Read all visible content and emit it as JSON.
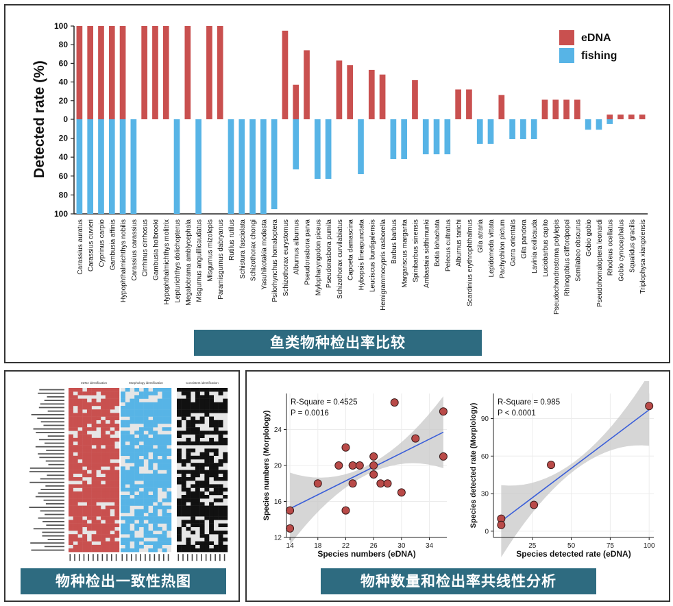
{
  "captions": {
    "top": "鱼类物种检出率比较",
    "bottom_left": "物种检出一致性热图",
    "bottom_right": "物种数量和检出率共线性分析"
  },
  "colors": {
    "edna": "#c9504f",
    "fishing": "#57b4e6",
    "caption_bg": "#2e6b80",
    "fit_line": "#3b5fd9"
  },
  "chart_data": [
    {
      "type": "bar",
      "title": "",
      "ylabel": "Detected rate (%)",
      "ylim_top": [
        0,
        100
      ],
      "ylim_bottom": [
        0,
        100
      ],
      "yticks": [
        100,
        80,
        60,
        40,
        20,
        0,
        20,
        40,
        60,
        80,
        100
      ],
      "legend": [
        "eDNA",
        "fishing"
      ],
      "legend_position": "top-right",
      "categories": [
        "Carassius auratus",
        "Carassius cuvieri",
        "Cyprinus carpio",
        "Gambusia affinis",
        "Hypophthalmichthys nobilis",
        "Carassius carassius",
        "Cirrhinus cirrhosus",
        "Gambusia holbrooki",
        "Hypophthalmichthys molitrix",
        "Lepturichthys dolichopterus",
        "Megalobrama amblycephala",
        "Misgurnus anguillicaudatus",
        "Misgurnus mizolepis",
        "Paramisgurnus dabryanus",
        "Rutilus rutilus",
        "Schistura fasciolata",
        "Schizothorax chongi",
        "Yasuhikotakia modesta",
        "Psilorhynchus homaloptera",
        "Schizothorax eurystomus",
        "Alburnus alburnus",
        "Pseudorasbora parva",
        "Mylopharyngodon piceus",
        "Pseudorasbora pumila",
        "Schizothorax curvilabiatus",
        "Capoeta damascina",
        "Hybopsis lineapunctata",
        "Leuciscus burdigalensis",
        "Hemigrammocypris rasborella",
        "Barbus barbus",
        "Margariscus margarita",
        "Spinibarbus sinensis",
        "Ambastaia sidthimunki",
        "Botia lohachata",
        "Pelecus cultratus",
        "Alburnus tarichi",
        "Scardinius erythrophthalmus",
        "Gila atraria",
        "Lepidomeda vittata",
        "Pachychilon pictum",
        "Garra orientalis",
        "Gila pandora",
        "Lavinia exilicauda",
        "Luciobarbus capito",
        "Pseudochondrostoma polylepis",
        "Rhinogobius cliffordpopei",
        "Semilabeo obscurus",
        "Gobio gobio",
        "Pseudohomaloptera leonardi",
        "Rhodeus ocellatus",
        "Gobio cynocephalus",
        "Squalidus gracilis",
        "Triplophysa xiangxiensis"
      ],
      "series": [
        {
          "name": "eDNA",
          "values": [
            100,
            100,
            100,
            100,
            100,
            0,
            100,
            100,
            100,
            0,
            100,
            0,
            100,
            100,
            0,
            0,
            0,
            0,
            0,
            95,
            37,
            74,
            0,
            0,
            63,
            58,
            0,
            53,
            48,
            0,
            0,
            42,
            0,
            0,
            0,
            32,
            32,
            0,
            0,
            26,
            0,
            0,
            0,
            21,
            21,
            21,
            21,
            0,
            0,
            5,
            5,
            5,
            5
          ]
        },
        {
          "name": "fishing",
          "values": [
            100,
            100,
            100,
            100,
            100,
            100,
            0,
            0,
            0,
            100,
            0,
            100,
            0,
            0,
            100,
            100,
            100,
            100,
            95,
            0,
            53,
            0,
            63,
            63,
            0,
            0,
            58,
            0,
            0,
            42,
            42,
            0,
            37,
            37,
            37,
            0,
            0,
            26,
            26,
            0,
            21,
            21,
            21,
            0,
            0,
            0,
            0,
            11,
            11,
            5,
            0,
            0,
            0
          ]
        }
      ]
    },
    {
      "type": "heatmap",
      "titles": [
        "eDNA identification",
        "Morphology identification",
        "Consistent identification"
      ]
    },
    {
      "type": "scatter",
      "xlabel": "Species numbers (eDNA)",
      "ylabel": "Species numbers (Morplology)",
      "xticks": [
        14,
        18,
        22,
        26,
        30,
        34
      ],
      "yticks": [
        12,
        16,
        20,
        24
      ],
      "xlim": [
        13.5,
        36.5
      ],
      "ylim": [
        12,
        28
      ],
      "annotations": [
        "R-Square = 0.4525",
        "P = 0.0016"
      ],
      "fit": {
        "x": [
          14,
          36
        ],
        "y": [
          15.2,
          23.7
        ]
      },
      "points": [
        [
          14,
          15
        ],
        [
          14,
          13
        ],
        [
          18,
          18
        ],
        [
          21,
          20
        ],
        [
          22,
          22
        ],
        [
          22,
          15
        ],
        [
          23,
          20
        ],
        [
          23,
          18
        ],
        [
          24,
          20
        ],
        [
          26,
          21
        ],
        [
          26,
          20
        ],
        [
          26,
          19
        ],
        [
          27,
          18
        ],
        [
          28,
          18
        ],
        [
          29,
          27
        ],
        [
          30,
          17
        ],
        [
          32,
          23
        ],
        [
          36,
          26
        ],
        [
          36,
          21
        ]
      ]
    },
    {
      "type": "scatter",
      "xlabel": "Species detected rate (eDNA)",
      "ylabel": "Species detected rate (Morplology)",
      "xticks": [
        25,
        50,
        75,
        100
      ],
      "yticks": [
        0,
        30,
        60,
        90
      ],
      "xlim": [
        0,
        103
      ],
      "ylim": [
        -5,
        110
      ],
      "annotations": [
        "R-Square = 0.985",
        "P < 0.0001"
      ],
      "fit": {
        "x": [
          5,
          100
        ],
        "y": [
          8,
          97
        ]
      },
      "points": [
        [
          5,
          10
        ],
        [
          5,
          5
        ],
        [
          26,
          21
        ],
        [
          37,
          53
        ],
        [
          100,
          100
        ]
      ]
    }
  ]
}
